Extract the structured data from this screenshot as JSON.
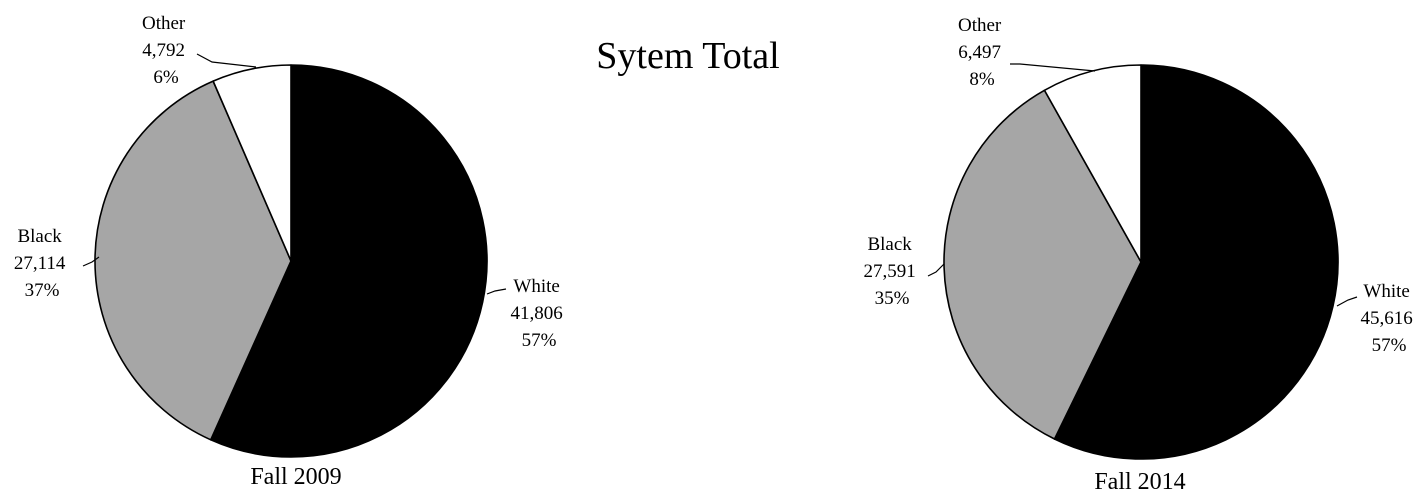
{
  "title": "Sytem Total",
  "colors": {
    "White": "#000000",
    "Black": "#a6a6a6",
    "Other": "#ffffff",
    "outline": "#000000"
  },
  "chart_data": [
    {
      "type": "pie",
      "caption": "Fall 2009",
      "slices": [
        {
          "name": "White",
          "value": 41806,
          "value_label": "41,806",
          "percent_label": "57%"
        },
        {
          "name": "Black",
          "value": 27114,
          "value_label": "27,114",
          "percent_label": "37%"
        },
        {
          "name": "Other",
          "value": 4792,
          "value_label": "4,792",
          "percent_label": "6%"
        }
      ]
    },
    {
      "type": "pie",
      "caption": "Fall 2014",
      "slices": [
        {
          "name": "White",
          "value": 45616,
          "value_label": "45,616",
          "percent_label": "57%"
        },
        {
          "name": "Black",
          "value": 27591,
          "value_label": "27,591",
          "percent_label": "35%"
        },
        {
          "name": "Other",
          "value": 6497,
          "value_label": "6,497",
          "percent_label": "8%"
        }
      ]
    }
  ]
}
